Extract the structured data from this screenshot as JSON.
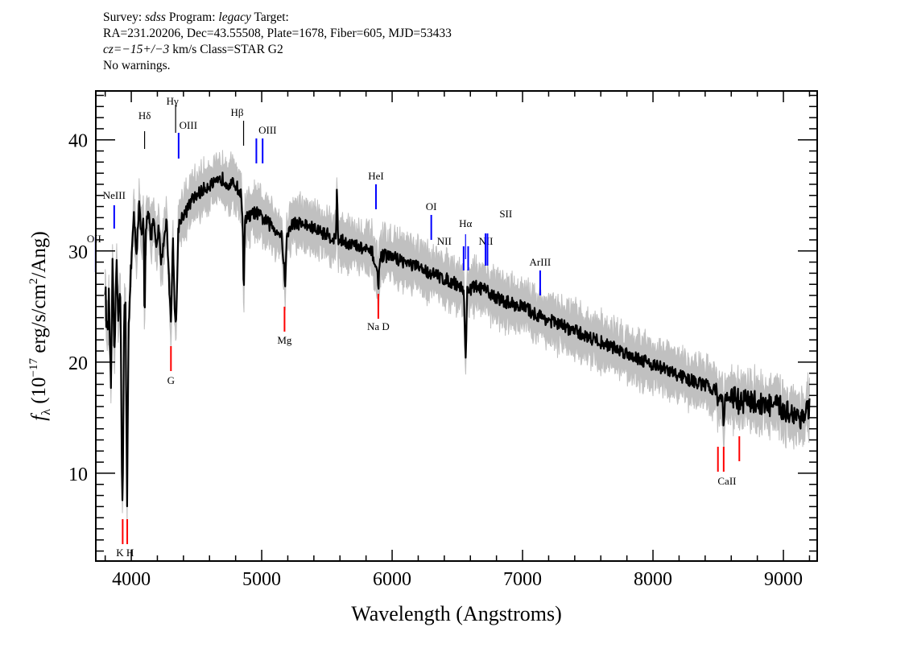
{
  "header": {
    "line1": {
      "survey_label": "Survey: ",
      "survey": "sdss",
      "program_label": " Program: ",
      "program": "legacy",
      "target_label": " Target:"
    },
    "line2": "RA=231.20206, Dec=43.55508, Plate=1678, Fiber=605, MJD=53433",
    "line3": {
      "cz": "cz=−15+/−3",
      "rest": " km/s Class=STAR G2"
    },
    "line4": "No warnings."
  },
  "chart_data": {
    "type": "line",
    "xlabel": "Wavelength (Angstroms)",
    "ylabel": "f_λ (10^-17 erg/s/cm^2/Ang)",
    "xlim": [
      3728,
      9259
    ],
    "ylim": [
      2.1,
      44.4
    ],
    "xticks": [
      4000,
      5000,
      6000,
      7000,
      8000,
      9000
    ],
    "yticks": [
      10,
      20,
      30,
      40
    ],
    "grid": false,
    "colors": {
      "flux": "#000000",
      "error_band": "#c0c0c0",
      "emission": "#0000ff",
      "absorption": "#ff0000",
      "balmer": "#000000"
    },
    "flux": [
      [
        3800,
        27
      ],
      [
        3815,
        22
      ],
      [
        3830,
        26
      ],
      [
        3845,
        16
      ],
      [
        3855,
        30
      ],
      [
        3870,
        19
      ],
      [
        3885,
        29
      ],
      [
        3900,
        24
      ],
      [
        3915,
        28
      ],
      [
        3925,
        14
      ],
      [
        3933,
        6.5
      ],
      [
        3945,
        24
      ],
      [
        3955,
        26
      ],
      [
        3962,
        15
      ],
      [
        3968,
        7
      ],
      [
        3978,
        22
      ],
      [
        3990,
        27
      ],
      [
        4005,
        30
      ],
      [
        4020,
        33
      ],
      [
        4040,
        30
      ],
      [
        4060,
        34
      ],
      [
        4080,
        31
      ],
      [
        4095,
        33
      ],
      [
        4102,
        22
      ],
      [
        4110,
        32
      ],
      [
        4130,
        34
      ],
      [
        4150,
        31
      ],
      [
        4170,
        33
      ],
      [
        4190,
        30
      ],
      [
        4210,
        32
      ],
      [
        4230,
        29
      ],
      [
        4250,
        31
      ],
      [
        4270,
        33
      ],
      [
        4290,
        27
      ],
      [
        4305,
        24
      ],
      [
        4320,
        31
      ],
      [
        4335,
        24
      ],
      [
        4345,
        23.5
      ],
      [
        4360,
        32
      ],
      [
        4380,
        33
      ],
      [
        4420,
        33.5
      ],
      [
        4460,
        34.5
      ],
      [
        4500,
        35
      ],
      [
        4550,
        35.5
      ],
      [
        4600,
        36
      ],
      [
        4650,
        36
      ],
      [
        4700,
        36.5
      ],
      [
        4750,
        36
      ],
      [
        4800,
        36
      ],
      [
        4840,
        35
      ],
      [
        4855,
        33
      ],
      [
        4862,
        24.5
      ],
      [
        4870,
        33
      ],
      [
        4900,
        33
      ],
      [
        4950,
        33.5
      ],
      [
        5000,
        33
      ],
      [
        5050,
        32.5
      ],
      [
        5100,
        32
      ],
      [
        5150,
        31.5
      ],
      [
        5170,
        29
      ],
      [
        5178,
        26.5
      ],
      [
        5190,
        31
      ],
      [
        5230,
        32.5
      ],
      [
        5300,
        32.5
      ],
      [
        5400,
        32
      ],
      [
        5500,
        31.5
      ],
      [
        5570,
        31
      ],
      [
        5577,
        36.5
      ],
      [
        5585,
        31
      ],
      [
        5650,
        30.8
      ],
      [
        5750,
        30.3
      ],
      [
        5850,
        29.8
      ],
      [
        5885,
        28
      ],
      [
        5895,
        27
      ],
      [
        5910,
        29.6
      ],
      [
        6000,
        29.5
      ],
      [
        6100,
        29
      ],
      [
        6200,
        28.5
      ],
      [
        6300,
        28
      ],
      [
        6400,
        27.5
      ],
      [
        6500,
        27
      ],
      [
        6550,
        26.5
      ],
      [
        6563,
        19.5
      ],
      [
        6575,
        26.5
      ],
      [
        6650,
        26.8
      ],
      [
        6750,
        26.2
      ],
      [
        6850,
        25.5
      ],
      [
        7000,
        25
      ],
      [
        7100,
        24.3
      ],
      [
        7200,
        23.8
      ],
      [
        7300,
        23.3
      ],
      [
        7400,
        22.8
      ],
      [
        7500,
        22.3
      ],
      [
        7600,
        21.8
      ],
      [
        7700,
        21.3
      ],
      [
        7800,
        20.8
      ],
      [
        7900,
        20.3
      ],
      [
        8000,
        19.8
      ],
      [
        8100,
        19.3
      ],
      [
        8200,
        18.8
      ],
      [
        8300,
        18.3
      ],
      [
        8400,
        17.9
      ],
      [
        8490,
        17.5
      ],
      [
        8498,
        16.2
      ],
      [
        8510,
        17.2
      ],
      [
        8535,
        16.5
      ],
      [
        8542,
        13.5
      ],
      [
        8552,
        16.8
      ],
      [
        8620,
        17
      ],
      [
        8655,
        16.5
      ],
      [
        8662,
        15
      ],
      [
        8670,
        16.5
      ],
      [
        8750,
        16.5
      ],
      [
        8850,
        16.2
      ],
      [
        8950,
        16
      ],
      [
        9050,
        15.5
      ],
      [
        9150,
        15
      ],
      [
        9200,
        16
      ]
    ],
    "lines": [
      {
        "label": "OII",
        "wavelength": 3727,
        "kind": "emission"
      },
      {
        "label": "NeIII",
        "wavelength": 3869,
        "kind": "emission"
      },
      {
        "label": "Hδ",
        "wavelength": 4102,
        "kind": "balmer"
      },
      {
        "label": "Hγ",
        "wavelength": 4340,
        "kind": "balmer"
      },
      {
        "label": "OIII",
        "wavelength": 4363,
        "kind": "emission"
      },
      {
        "label": "Hβ",
        "wavelength": 4861,
        "kind": "balmer"
      },
      {
        "label": "OIII",
        "wavelength": [
          4959,
          5007
        ],
        "kind": "emission"
      },
      {
        "label": "HeI",
        "wavelength": 5876,
        "kind": "emission"
      },
      {
        "label": "OI",
        "wavelength": 6300,
        "kind": "emission"
      },
      {
        "label": "NII",
        "wavelength": 6548,
        "kind": "emission"
      },
      {
        "label": "Hα",
        "wavelength": 6563,
        "kind": "emission"
      },
      {
        "label": "NII",
        "wavelength": 6583,
        "kind": "emission"
      },
      {
        "label": "SII",
        "wavelength": [
          6716,
          6731
        ],
        "kind": "emission"
      },
      {
        "label": "ArIII",
        "wavelength": 7135,
        "kind": "emission"
      },
      {
        "label": "K H",
        "wavelength": [
          3934,
          3969
        ],
        "kind": "absorption"
      },
      {
        "label": "G",
        "wavelength": 4304,
        "kind": "absorption"
      },
      {
        "label": "Mg",
        "wavelength": 5175,
        "kind": "absorption"
      },
      {
        "label": "Na  D",
        "wavelength": 5894,
        "kind": "absorption"
      },
      {
        "label": "CaII",
        "wavelength": [
          8498,
          8542,
          8662
        ],
        "kind": "absorption"
      }
    ]
  }
}
